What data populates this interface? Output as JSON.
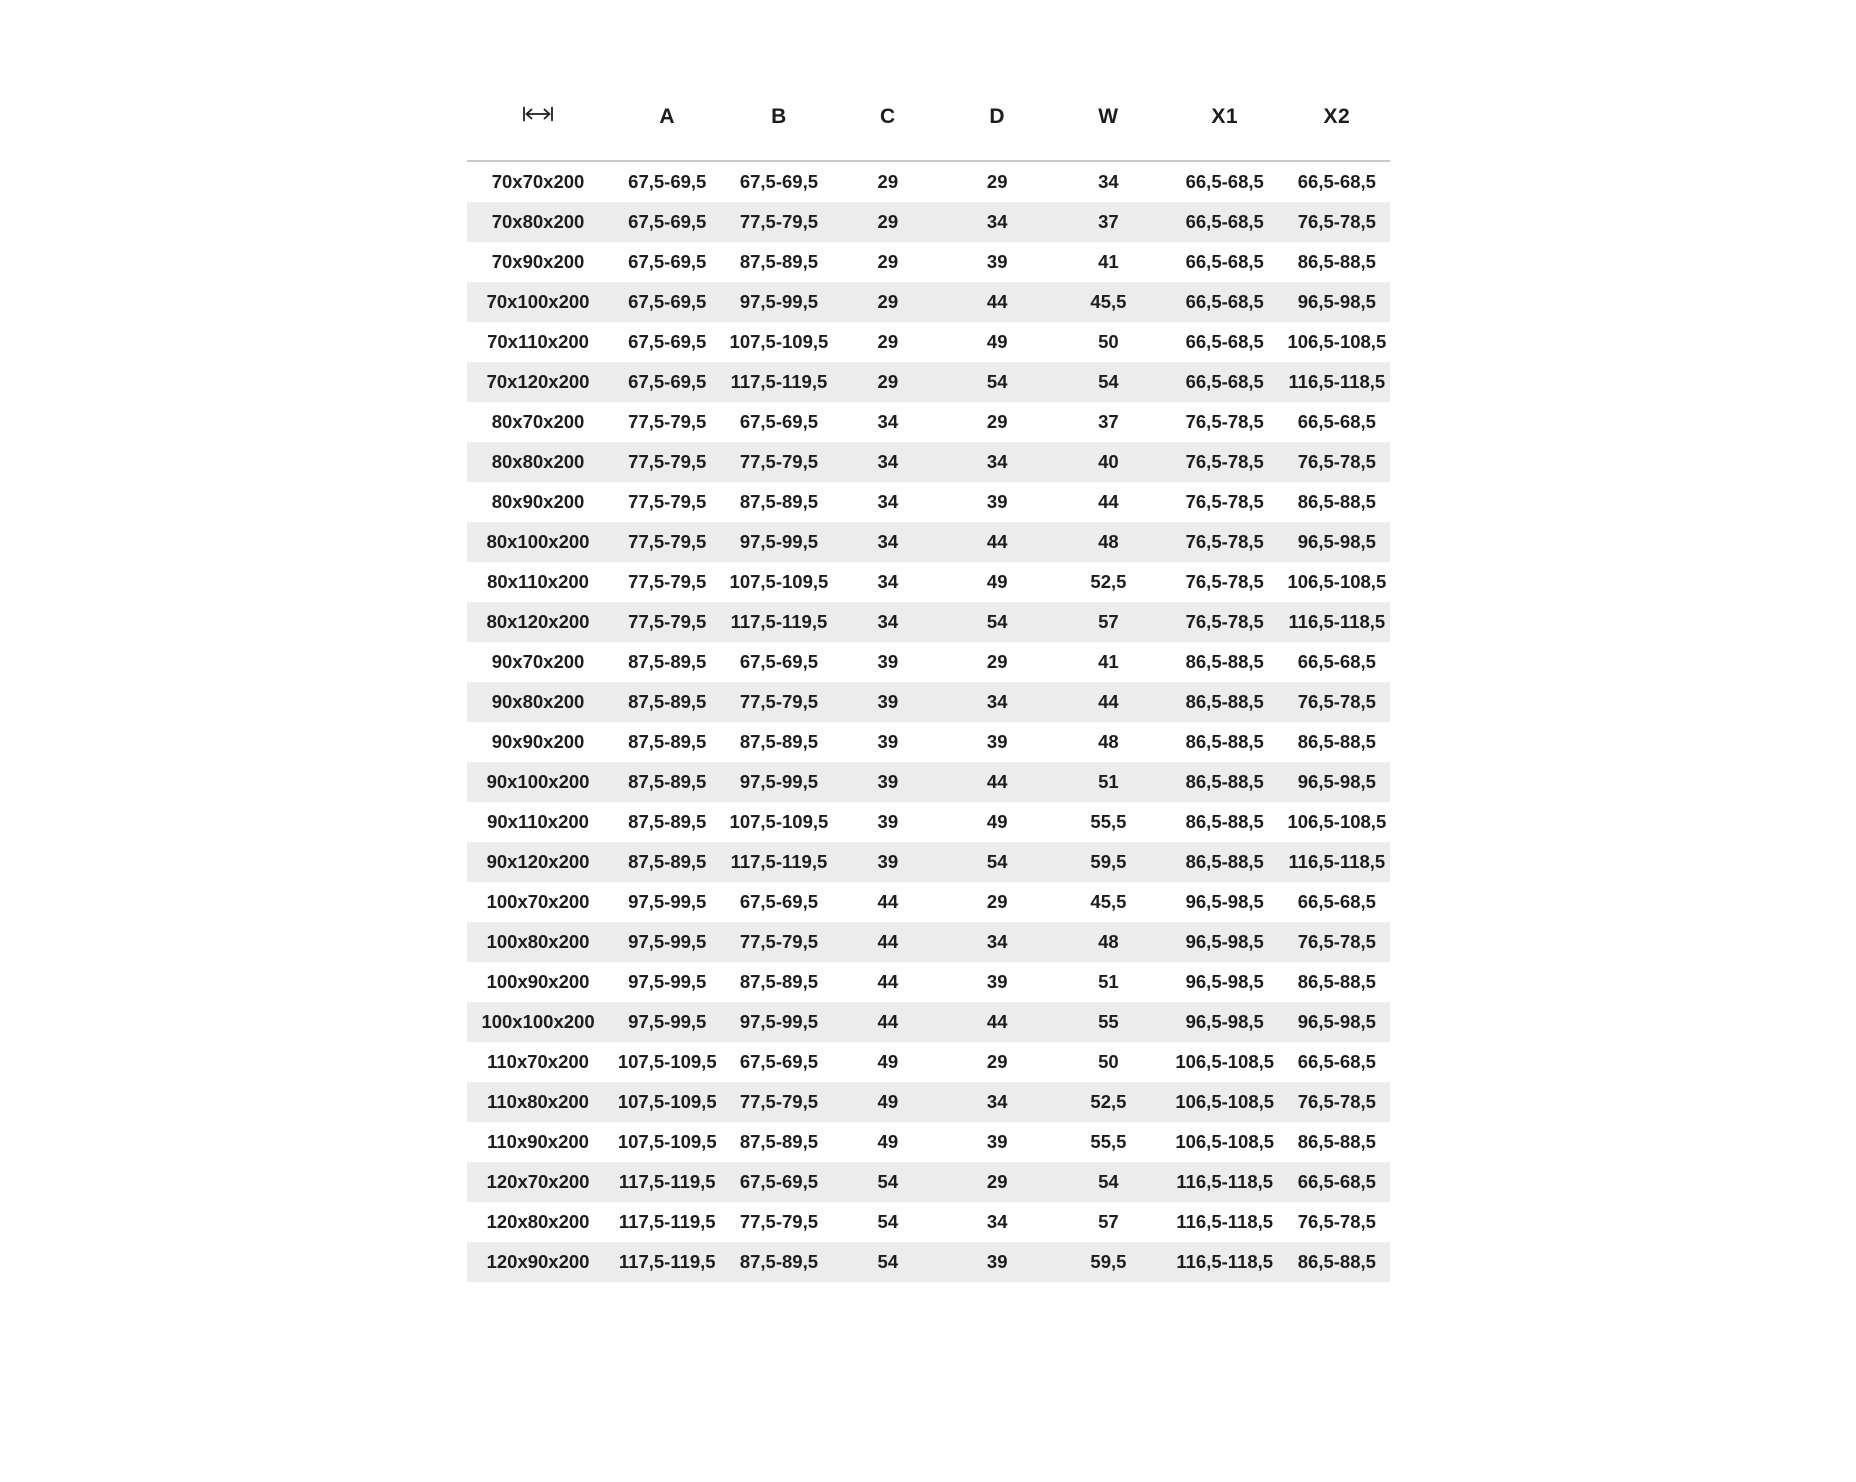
{
  "header": {
    "size_column_icon": "width-dimension-icon",
    "labels": [
      "A",
      "B",
      "C",
      "D",
      "W",
      "X1",
      "X2"
    ]
  },
  "colors": {
    "background": "#ffffff",
    "text": "#1d1d1b",
    "stripe": "#ececec",
    "divider": "#c9c9c9"
  },
  "chart_data": {
    "type": "table",
    "columns": [
      "width-dimension-icon",
      "A",
      "B",
      "C",
      "D",
      "W",
      "X1",
      "X2"
    ],
    "rows": [
      [
        "70x70x200",
        "67,5-69,5",
        "67,5-69,5",
        "29",
        "29",
        "34",
        "66,5-68,5",
        "66,5-68,5"
      ],
      [
        "70x80x200",
        "67,5-69,5",
        "77,5-79,5",
        "29",
        "34",
        "37",
        "66,5-68,5",
        "76,5-78,5"
      ],
      [
        "70x90x200",
        "67,5-69,5",
        "87,5-89,5",
        "29",
        "39",
        "41",
        "66,5-68,5",
        "86,5-88,5"
      ],
      [
        "70x100x200",
        "67,5-69,5",
        "97,5-99,5",
        "29",
        "44",
        "45,5",
        "66,5-68,5",
        "96,5-98,5"
      ],
      [
        "70x110x200",
        "67,5-69,5",
        "107,5-109,5",
        "29",
        "49",
        "50",
        "66,5-68,5",
        "106,5-108,5"
      ],
      [
        "70x120x200",
        "67,5-69,5",
        "117,5-119,5",
        "29",
        "54",
        "54",
        "66,5-68,5",
        "116,5-118,5"
      ],
      [
        "80x70x200",
        "77,5-79,5",
        "67,5-69,5",
        "34",
        "29",
        "37",
        "76,5-78,5",
        "66,5-68,5"
      ],
      [
        "80x80x200",
        "77,5-79,5",
        "77,5-79,5",
        "34",
        "34",
        "40",
        "76,5-78,5",
        "76,5-78,5"
      ],
      [
        "80x90x200",
        "77,5-79,5",
        "87,5-89,5",
        "34",
        "39",
        "44",
        "76,5-78,5",
        "86,5-88,5"
      ],
      [
        "80x100x200",
        "77,5-79,5",
        "97,5-99,5",
        "34",
        "44",
        "48",
        "76,5-78,5",
        "96,5-98,5"
      ],
      [
        "80x110x200",
        "77,5-79,5",
        "107,5-109,5",
        "34",
        "49",
        "52,5",
        "76,5-78,5",
        "106,5-108,5"
      ],
      [
        "80x120x200",
        "77,5-79,5",
        "117,5-119,5",
        "34",
        "54",
        "57",
        "76,5-78,5",
        "116,5-118,5"
      ],
      [
        "90x70x200",
        "87,5-89,5",
        "67,5-69,5",
        "39",
        "29",
        "41",
        "86,5-88,5",
        "66,5-68,5"
      ],
      [
        "90x80x200",
        "87,5-89,5",
        "77,5-79,5",
        "39",
        "34",
        "44",
        "86,5-88,5",
        "76,5-78,5"
      ],
      [
        "90x90x200",
        "87,5-89,5",
        "87,5-89,5",
        "39",
        "39",
        "48",
        "86,5-88,5",
        "86,5-88,5"
      ],
      [
        "90x100x200",
        "87,5-89,5",
        "97,5-99,5",
        "39",
        "44",
        "51",
        "86,5-88,5",
        "96,5-98,5"
      ],
      [
        "90x110x200",
        "87,5-89,5",
        "107,5-109,5",
        "39",
        "49",
        "55,5",
        "86,5-88,5",
        "106,5-108,5"
      ],
      [
        "90x120x200",
        "87,5-89,5",
        "117,5-119,5",
        "39",
        "54",
        "59,5",
        "86,5-88,5",
        "116,5-118,5"
      ],
      [
        "100x70x200",
        "97,5-99,5",
        "67,5-69,5",
        "44",
        "29",
        "45,5",
        "96,5-98,5",
        "66,5-68,5"
      ],
      [
        "100x80x200",
        "97,5-99,5",
        "77,5-79,5",
        "44",
        "34",
        "48",
        "96,5-98,5",
        "76,5-78,5"
      ],
      [
        "100x90x200",
        "97,5-99,5",
        "87,5-89,5",
        "44",
        "39",
        "51",
        "96,5-98,5",
        "86,5-88,5"
      ],
      [
        "100x100x200",
        "97,5-99,5",
        "97,5-99,5",
        "44",
        "44",
        "55",
        "96,5-98,5",
        "96,5-98,5"
      ],
      [
        "110x70x200",
        "107,5-109,5",
        "67,5-69,5",
        "49",
        "29",
        "50",
        "106,5-108,5",
        "66,5-68,5"
      ],
      [
        "110x80x200",
        "107,5-109,5",
        "77,5-79,5",
        "49",
        "34",
        "52,5",
        "106,5-108,5",
        "76,5-78,5"
      ],
      [
        "110x90x200",
        "107,5-109,5",
        "87,5-89,5",
        "49",
        "39",
        "55,5",
        "106,5-108,5",
        "86,5-88,5"
      ],
      [
        "120x70x200",
        "117,5-119,5",
        "67,5-69,5",
        "54",
        "29",
        "54",
        "116,5-118,5",
        "66,5-68,5"
      ],
      [
        "120x80x200",
        "117,5-119,5",
        "77,5-79,5",
        "54",
        "34",
        "57",
        "116,5-118,5",
        "76,5-78,5"
      ],
      [
        "120x90x200",
        "117,5-119,5",
        "87,5-89,5",
        "54",
        "39",
        "59,5",
        "116,5-118,5",
        "86,5-88,5"
      ]
    ]
  }
}
